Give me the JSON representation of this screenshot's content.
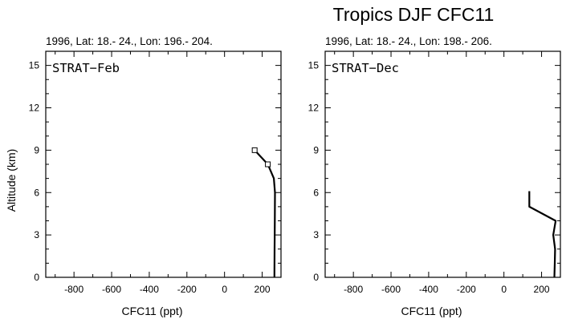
{
  "figure_title": "Tropics DJF CFC11",
  "chart_data": [
    {
      "type": "line",
      "panel_label": "STRAT−Feb",
      "subtitle": "1996, Lat: 18.- 24., Lon: 196.- 204.",
      "xlabel": "CFC11 (ppt)",
      "ylabel": "Altitude (km)",
      "xlim": [
        -950,
        300
      ],
      "ylim": [
        0,
        16
      ],
      "xticks": [
        -800,
        -600,
        -400,
        -200,
        0,
        200
      ],
      "yticks": [
        0,
        3,
        6,
        9,
        12,
        15
      ],
      "grid": false,
      "series": [
        {
          "x": [
            265,
            266,
            267,
            268,
            262,
            230,
            160
          ],
          "y": [
            0,
            2,
            4,
            6,
            7,
            8,
            9
          ],
          "markers_at_y": [
            8,
            9
          ],
          "marker": "open-square"
        }
      ]
    },
    {
      "type": "line",
      "panel_label": "STRAT−Dec",
      "subtitle": "1996, Lat: 18.- 24., Lon: 198.- 206.",
      "xlabel": "CFC11 (ppt)",
      "ylabel": "",
      "xlim": [
        -950,
        300
      ],
      "ylim": [
        0,
        16
      ],
      "xticks": [
        -800,
        -600,
        -400,
        -200,
        0,
        200
      ],
      "yticks": [
        0,
        3,
        6,
        9,
        12,
        15
      ],
      "grid": false,
      "series": [
        {
          "x": [
            268,
            270,
            272,
            262,
            275,
            135,
            135
          ],
          "y": [
            0,
            1,
            2,
            3,
            4,
            5,
            6.1
          ]
        }
      ]
    }
  ]
}
